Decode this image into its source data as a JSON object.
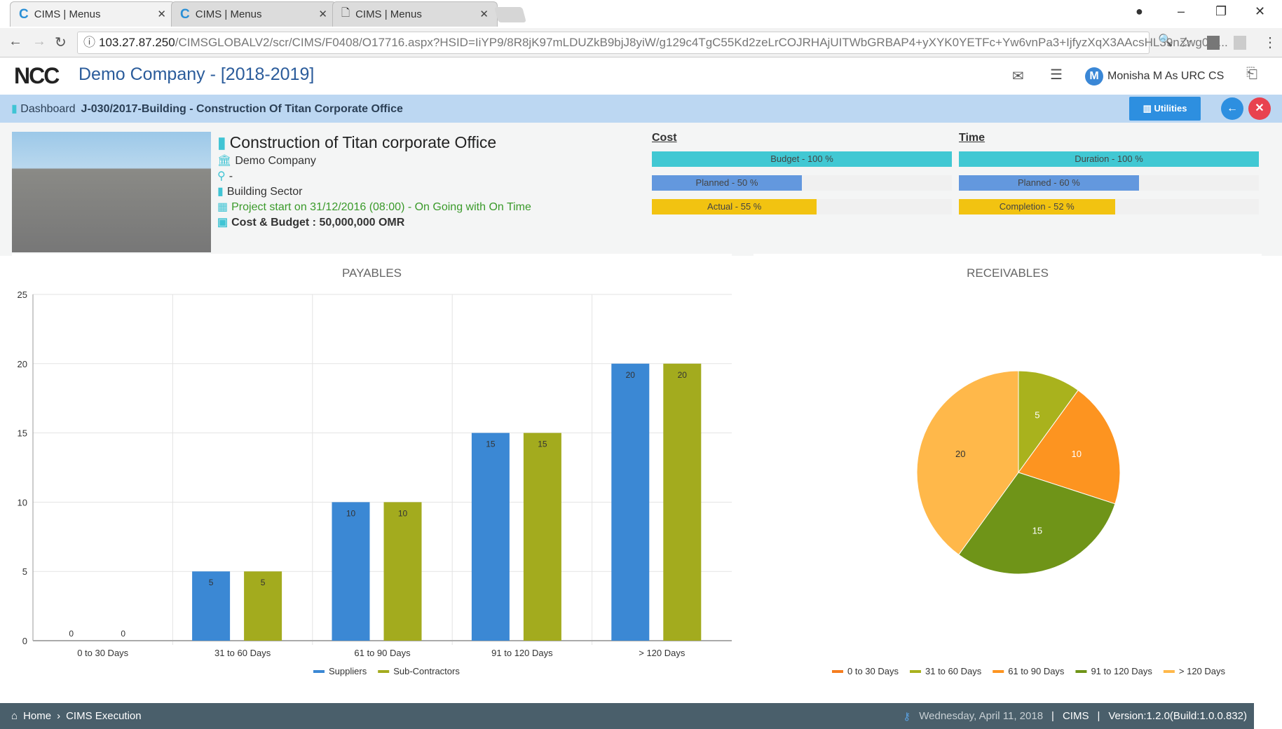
{
  "browser": {
    "tabs": [
      {
        "title": "CIMS | Menus",
        "icon": "C"
      },
      {
        "title": "CIMS | Menus",
        "icon": "C"
      },
      {
        "title": "CIMS | Menus",
        "icon": "page"
      }
    ],
    "url_host": "103.27.87.250",
    "url_path": "/CIMSGLOBALV2/scr/CIMS/F0408/O17716.aspx?HSID=IiYP9/8R8jK97mLDUZkB9bjJ8yiW/g129c4TgC55Kd2zeLrCOJRHAjUITWbGRBAP4+yXYK0YETFc+Yw6vnPa3+IjfyzXqX3AAcsHL39nZwg0O..."
  },
  "header": {
    "logo": "NCC",
    "company": "Demo Company - [2018-2019]",
    "user_initial": "M",
    "user": "Monisha M As URC CS"
  },
  "breadcrumb": {
    "dashboard": "Dashboard",
    "job": "J-030/2017-Building - Construction Of Titan Corporate Office",
    "utilities": "Utilities"
  },
  "project": {
    "title": "Construction of Titan corporate Office",
    "company": "Demo Company",
    "location": "-",
    "sector": "Building Sector",
    "start": "Project start on 31/12/2016  (08:00) -  On Going with On Time",
    "cost": "Cost & Budget : 50,000,000 OMR"
  },
  "cost": {
    "heading": "Cost",
    "bars": [
      {
        "label": "Budget - 100 %",
        "value": 100,
        "color": "#41c8d3"
      },
      {
        "label": "Planned - 50 %",
        "value": 50,
        "color": "#6398de"
      },
      {
        "label": "Actual - 55 %",
        "value": 55,
        "color": "#f2c311"
      }
    ]
  },
  "time": {
    "heading": "Time",
    "bars": [
      {
        "label": "Duration - 100 %",
        "value": 100,
        "color": "#41c8d3"
      },
      {
        "label": "Planned - 60 %",
        "value": 60,
        "color": "#6398de"
      },
      {
        "label": "Completion - 52 %",
        "value": 52,
        "color": "#f2c311"
      }
    ]
  },
  "chart_data": [
    {
      "type": "bar",
      "title": "PAYABLES",
      "categories": [
        "0 to 30 Days",
        "31 to 60 Days",
        "61 to 90 Days",
        "91 to 120 Days",
        "> 120 Days"
      ],
      "series": [
        {
          "name": "Suppliers",
          "values": [
            0,
            5,
            10,
            15,
            20
          ],
          "color": "#3b88d4"
        },
        {
          "name": "Sub-Contractors",
          "values": [
            0,
            5,
            10,
            15,
            20
          ],
          "color": "#a3ab1e"
        }
      ],
      "ylim": [
        0,
        25
      ],
      "yticks": [
        0,
        5,
        10,
        15,
        20,
        25
      ],
      "legend": "bottom",
      "grid": true
    },
    {
      "type": "pie",
      "title": "RECEIVABLES",
      "categories": [
        "0 to 30 Days",
        "31 to 60 Days",
        "61 to 90 Days",
        "91 to 120 Days",
        "> 120 Days"
      ],
      "values": [
        0,
        5,
        10,
        15,
        20
      ],
      "colors": [
        "#f57d1f",
        "#a9b21d",
        "#fd9420",
        "#6f9418",
        "#ffb84a"
      ],
      "legend": "bottom"
    }
  ],
  "footer": {
    "home": "Home",
    "module": "CIMS Execution",
    "date": "Wednesday, April 11, 2018",
    "app": "CIMS",
    "version": "Version:1.2.0(Build:1.0.0.832)"
  }
}
